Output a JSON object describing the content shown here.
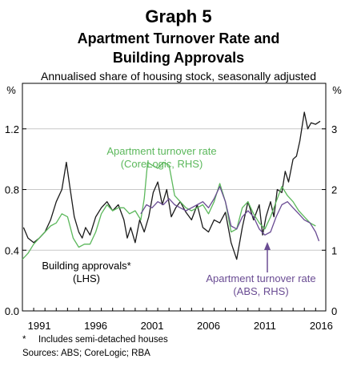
{
  "header": {
    "graph_label": "Graph 5",
    "title_line1": "Apartment Turnover Rate and",
    "title_line2": "Building Approvals",
    "subtitle": "Annualised share of housing stock, seasonally adjusted"
  },
  "footer": {
    "footnote_marker": "*",
    "footnote": "Includes semi-detached houses",
    "sources": "Sources: ABS; CoreLogic; RBA"
  },
  "colors": {
    "building_approvals": "#1a1a1a",
    "corelogic": "#5cb85c",
    "abs": "#6a4c93"
  },
  "chart_data": {
    "type": "line",
    "left_unit": "%",
    "right_unit": "%",
    "xlim": [
      1990.0,
      2016.9
    ],
    "ylim_left": [
      0.0,
      1.5
    ],
    "ylim_right": [
      0,
      3.75
    ],
    "x_ticks": [
      1991,
      1996,
      2001,
      2006,
      2011,
      2016
    ],
    "left_ticks": [
      {
        "v": 0.0,
        "label": "0.0"
      },
      {
        "v": 0.4,
        "label": "0.4"
      },
      {
        "v": 0.8,
        "label": "0.8"
      },
      {
        "v": 1.2,
        "label": "1.2"
      }
    ],
    "right_ticks": [
      {
        "v": 0,
        "label": "0"
      },
      {
        "v": 1,
        "label": "1"
      },
      {
        "v": 2,
        "label": "2"
      },
      {
        "v": 3,
        "label": "3"
      }
    ],
    "grid": true,
    "series": [
      {
        "name": "Building approvals*",
        "name_line2": "(LHS)",
        "axis": "left",
        "x": [
          1990.1,
          1990.5,
          1991.0,
          1991.5,
          1992.0,
          1992.5,
          1993.0,
          1993.5,
          1993.9,
          1994.2,
          1994.6,
          1995.0,
          1995.3,
          1995.6,
          1996.0,
          1996.5,
          1997.0,
          1997.5,
          1998.0,
          1998.5,
          1999.0,
          1999.3,
          1999.6,
          2000.0,
          2000.4,
          2000.8,
          2001.2,
          2001.6,
          2002.0,
          2002.4,
          2002.8,
          2003.2,
          2003.6,
          2004.0,
          2004.5,
          2005.0,
          2005.5,
          2006.0,
          2006.5,
          2007.0,
          2007.5,
          2008.0,
          2008.5,
          2009.0,
          2009.5,
          2010.0,
          2010.5,
          2011.0,
          2011.3,
          2011.6,
          2012.0,
          2012.3,
          2012.6,
          2013.0,
          2013.3,
          2013.6,
          2014.0,
          2014.3,
          2014.6,
          2015.0,
          2015.3,
          2015.6,
          2016.0,
          2016.4
        ],
        "y": [
          0.55,
          0.48,
          0.45,
          0.48,
          0.52,
          0.6,
          0.72,
          0.8,
          0.98,
          0.82,
          0.62,
          0.52,
          0.48,
          0.55,
          0.5,
          0.62,
          0.68,
          0.72,
          0.66,
          0.7,
          0.6,
          0.48,
          0.55,
          0.45,
          0.6,
          0.52,
          0.62,
          0.78,
          0.85,
          0.7,
          0.8,
          0.62,
          0.68,
          0.72,
          0.65,
          0.6,
          0.7,
          0.55,
          0.52,
          0.6,
          0.58,
          0.65,
          0.45,
          0.34,
          0.55,
          0.72,
          0.6,
          0.7,
          0.5,
          0.62,
          0.72,
          0.62,
          0.8,
          0.78,
          0.92,
          0.85,
          1.0,
          1.02,
          1.12,
          1.31,
          1.2,
          1.24,
          1.23,
          1.25
        ]
      },
      {
        "name": "Apartment turnover rate",
        "name_line2": "(CoreLogic, RHS)",
        "axis": "right",
        "x": [
          1990.0,
          1990.5,
          1991.0,
          1991.5,
          1992.0,
          1992.5,
          1993.0,
          1993.5,
          1994.0,
          1994.5,
          1995.0,
          1995.5,
          1996.0,
          1996.5,
          1997.0,
          1997.5,
          1998.0,
          1998.5,
          1999.0,
          1999.5,
          2000.0,
          2000.5,
          2000.8,
          2001.1,
          2001.5,
          2002.0,
          2002.5,
          2003.0,
          2003.5,
          2004.0,
          2004.5,
          2005.0,
          2005.5,
          2006.0,
          2006.5,
          2007.0,
          2007.5,
          2008.0,
          2008.5,
          2009.0,
          2009.5,
          2010.0,
          2010.5,
          2011.0,
          2011.5,
          2012.0,
          2012.5,
          2013.0,
          2013.5,
          2014.0,
          2014.5,
          2015.0,
          2015.5,
          2016.0
        ],
        "y": [
          0.85,
          0.95,
          1.1,
          1.2,
          1.3,
          1.4,
          1.45,
          1.6,
          1.55,
          1.2,
          1.05,
          1.1,
          1.1,
          1.3,
          1.6,
          1.75,
          1.65,
          1.7,
          1.7,
          1.6,
          1.65,
          1.5,
          1.85,
          2.45,
          2.4,
          2.35,
          2.45,
          2.4,
          1.9,
          1.8,
          1.7,
          1.65,
          1.7,
          1.75,
          1.6,
          1.8,
          2.1,
          1.8,
          1.3,
          1.35,
          1.7,
          1.8,
          1.6,
          1.45,
          1.35,
          1.55,
          1.8,
          2.05,
          1.9,
          1.8,
          1.65,
          1.55,
          1.45,
          1.4
        ]
      },
      {
        "name": "Apartment turnover rate",
        "name_line2": "(ABS, RHS)",
        "axis": "right",
        "x": [
          2000.5,
          2001.0,
          2001.5,
          2002.0,
          2002.5,
          2003.0,
          2003.5,
          2004.0,
          2004.5,
          2005.0,
          2005.5,
          2006.0,
          2006.5,
          2007.0,
          2007.5,
          2008.0,
          2008.5,
          2009.0,
          2009.5,
          2010.0,
          2010.5,
          2011.0,
          2011.5,
          2012.0,
          2012.5,
          2013.0,
          2013.5,
          2014.0,
          2014.5,
          2015.0,
          2015.5,
          2016.0,
          2016.3
        ],
        "y": [
          1.6,
          1.75,
          1.7,
          1.8,
          1.75,
          1.85,
          1.75,
          1.7,
          1.65,
          1.7,
          1.75,
          1.8,
          1.7,
          1.85,
          2.05,
          1.8,
          1.4,
          1.35,
          1.55,
          1.65,
          1.55,
          1.35,
          1.25,
          1.3,
          1.55,
          1.75,
          1.8,
          1.7,
          1.6,
          1.5,
          1.45,
          1.3,
          1.15
        ]
      }
    ]
  }
}
